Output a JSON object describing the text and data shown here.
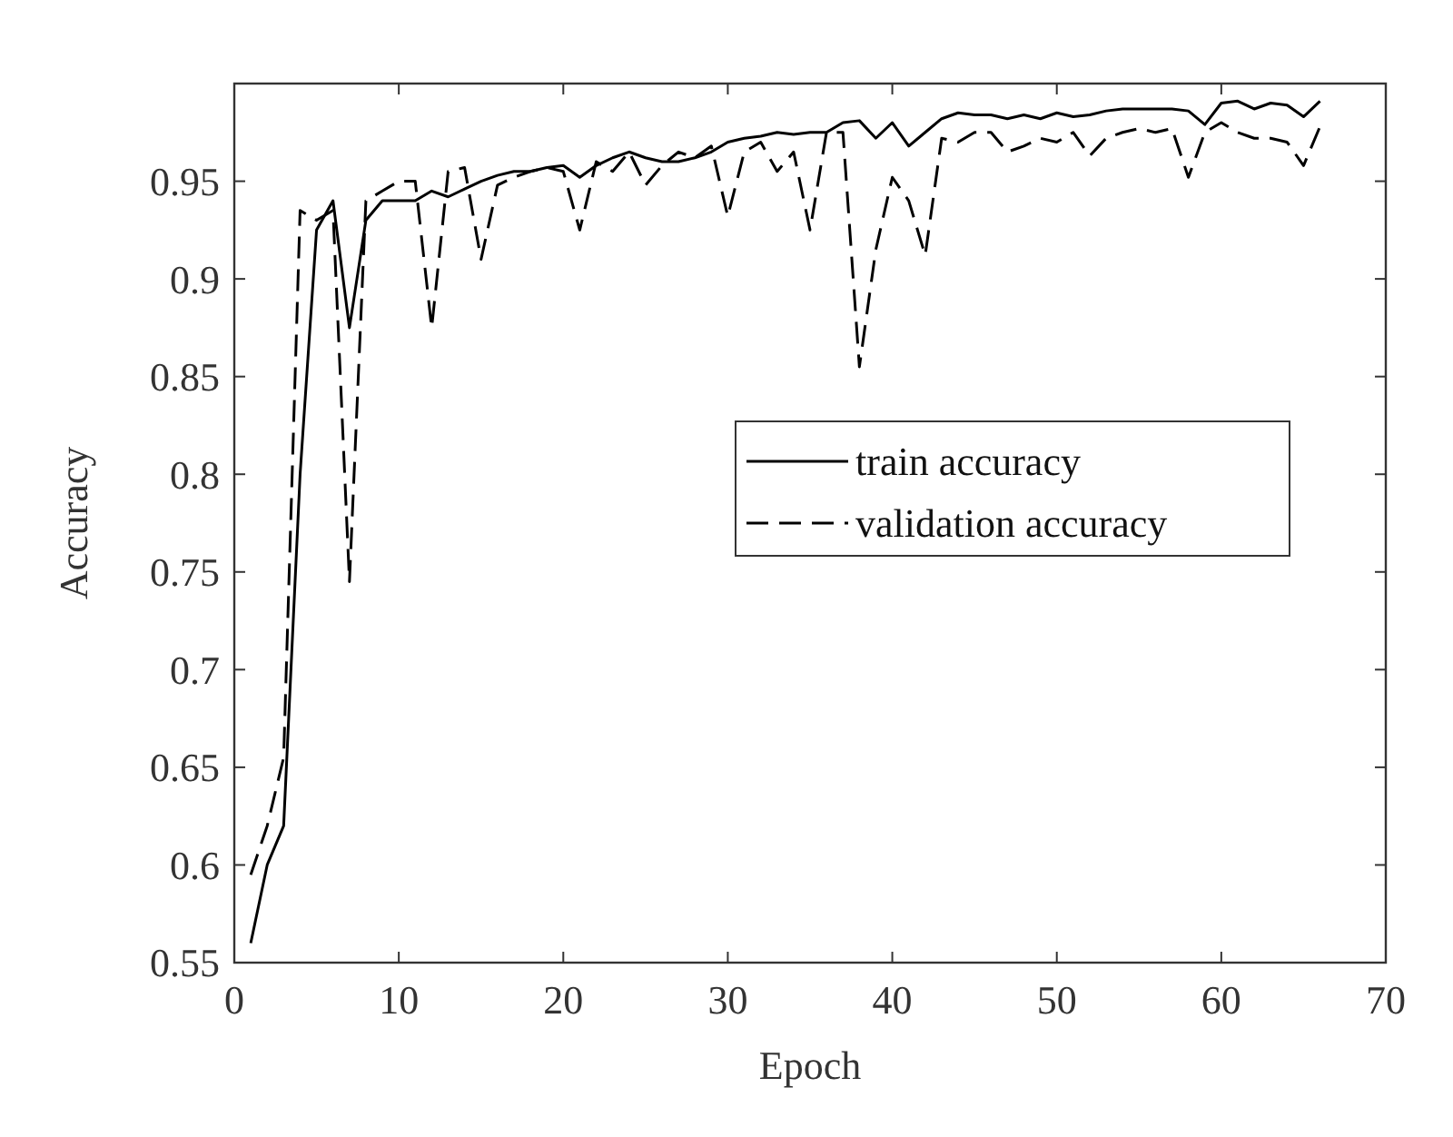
{
  "chart_data": {
    "type": "line",
    "xlabel": "Epoch",
    "ylabel": "Accuracy",
    "x": [
      1,
      2,
      3,
      4,
      5,
      6,
      7,
      8,
      9,
      10,
      11,
      12,
      13,
      14,
      15,
      16,
      17,
      18,
      19,
      20,
      21,
      22,
      23,
      24,
      25,
      26,
      27,
      28,
      29,
      30,
      31,
      32,
      33,
      34,
      35,
      36,
      37,
      38,
      39,
      40,
      41,
      42,
      43,
      44,
      45,
      46,
      47,
      48,
      49,
      50,
      51,
      52,
      53,
      54,
      55,
      56,
      57,
      58,
      59,
      60,
      61,
      62,
      63,
      64,
      65,
      66
    ],
    "series": [
      {
        "name": "train accuracy",
        "color": "#000000",
        "line_style": "solid",
        "values": [
          0.56,
          0.6,
          0.62,
          0.8,
          0.925,
          0.94,
          0.875,
          0.93,
          0.94,
          0.94,
          0.94,
          0.945,
          0.942,
          0.946,
          0.95,
          0.953,
          0.955,
          0.955,
          0.957,
          0.958,
          0.952,
          0.958,
          0.962,
          0.965,
          0.962,
          0.96,
          0.96,
          0.962,
          0.965,
          0.97,
          0.972,
          0.973,
          0.975,
          0.974,
          0.975,
          0.975,
          0.98,
          0.981,
          0.972,
          0.98,
          0.968,
          0.975,
          0.982,
          0.985,
          0.984,
          0.984,
          0.982,
          0.984,
          0.982,
          0.985,
          0.983,
          0.984,
          0.986,
          0.987,
          0.987,
          0.987,
          0.987,
          0.986,
          0.979,
          0.99,
          0.991,
          0.987,
          0.99,
          0.989,
          0.983,
          0.991
        ]
      },
      {
        "name": "validation accuracy",
        "color": "#000000",
        "line_style": "dashed",
        "values": [
          0.595,
          0.62,
          0.655,
          0.935,
          0.93,
          0.935,
          0.745,
          0.94,
          0.945,
          0.95,
          0.95,
          0.875,
          0.955,
          0.957,
          0.91,
          0.948,
          0.952,
          0.955,
          0.957,
          0.955,
          0.925,
          0.96,
          0.955,
          0.965,
          0.948,
          0.958,
          0.965,
          0.962,
          0.968,
          0.932,
          0.965,
          0.97,
          0.955,
          0.965,
          0.925,
          0.975,
          0.975,
          0.855,
          0.915,
          0.952,
          0.94,
          0.912,
          0.972,
          0.97,
          0.975,
          0.975,
          0.965,
          0.968,
          0.972,
          0.97,
          0.975,
          0.963,
          0.972,
          0.975,
          0.977,
          0.975,
          0.977,
          0.952,
          0.975,
          0.98,
          0.975,
          0.972,
          0.972,
          0.97,
          0.958,
          0.978
        ]
      }
    ],
    "xlim": [
      0,
      70
    ],
    "xticks": [
      0,
      10,
      20,
      30,
      40,
      50,
      60,
      70
    ],
    "ylim": [
      0.55,
      1.0
    ],
    "yticks": [
      0.55,
      0.6,
      0.65,
      0.7,
      0.75,
      0.8,
      0.85,
      0.9,
      0.95
    ],
    "grid": false,
    "legend": "right"
  }
}
